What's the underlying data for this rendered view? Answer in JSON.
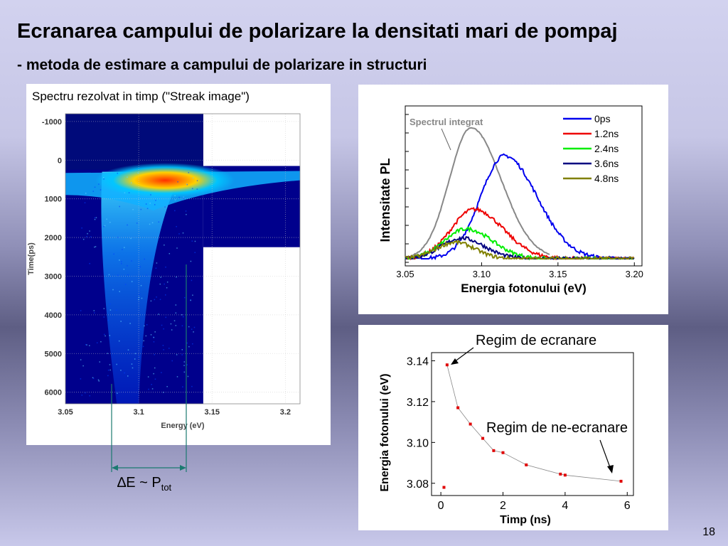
{
  "slide": {
    "title": "Ecranarea campului de polarizare la densitati mari de pompaj",
    "subtitle": "- metoda de estimare a campului de polarizare in structuri",
    "page_number": "18",
    "delta_label_main": "∆E ~ P",
    "delta_label_sub": "tot"
  },
  "chart_data": [
    {
      "type": "heatmap",
      "title": "Spectru rezolvat in timp (\"Streak image\")",
      "xlabel": "Energy (eV)",
      "ylabel": "Time(ps)",
      "xlim": [
        3.05,
        3.21
      ],
      "ylim": [
        -1200,
        6300
      ],
      "x_ticks": [
        "3.05",
        "3.1",
        "3.15",
        "3.2"
      ],
      "y_ticks": [
        "-1000",
        "0",
        "1000",
        "2000",
        "3000",
        "4000",
        "5000",
        "6000"
      ],
      "colors": {
        "low": "#00008c",
        "mid": "#00c8ff",
        "high": "#ff3000"
      }
    },
    {
      "type": "line",
      "xlabel": "Energia fotonului (eV)",
      "ylabel": "Intensitate PL",
      "xlim": [
        3.05,
        3.205
      ],
      "x_ticks": [
        "3.05",
        "3.10",
        "3.15",
        "3.20"
      ],
      "annotation": "Spectrul integrat",
      "integrated": {
        "color": "#888888",
        "peak_energy": 3.093,
        "range": [
          3.05,
          3.145
        ]
      },
      "series": [
        {
          "name": "0ps",
          "color": "#0000ee",
          "peak_energy": 3.115,
          "peak_intensity": 1.0
        },
        {
          "name": "1.2ns",
          "color": "#ee0000",
          "peak_energy": 3.095,
          "peak_intensity": 0.48
        },
        {
          "name": "2.4ns",
          "color": "#00ee00",
          "peak_energy": 3.09,
          "peak_intensity": 0.29
        },
        {
          "name": "3.6ns",
          "color": "#000080",
          "peak_energy": 3.087,
          "peak_intensity": 0.2
        },
        {
          "name": "4.8ns",
          "color": "#808000",
          "peak_energy": 3.083,
          "peak_intensity": 0.16
        }
      ]
    },
    {
      "type": "scatter",
      "xlabel": "Timp (ns)",
      "ylabel": "Energia fotonului (eV)",
      "xlim": [
        -0.3,
        6.2
      ],
      "ylim": [
        3.074,
        3.144
      ],
      "x_ticks": [
        "0",
        "2",
        "4",
        "6"
      ],
      "y_ticks": [
        "3.08",
        "3.10",
        "3.12",
        "3.14"
      ],
      "x": [
        0.1,
        0.2,
        0.55,
        0.95,
        1.35,
        1.7,
        2.0,
        2.75,
        3.85,
        4.0,
        5.8
      ],
      "y": [
        3.078,
        3.138,
        3.117,
        3.109,
        3.102,
        3.096,
        3.095,
        3.089,
        3.0845,
        3.084,
        3.081
      ],
      "annotations": [
        "Regim de ecranare",
        "Regim de ne-ecranare"
      ],
      "point_color": "#e00000"
    }
  ]
}
